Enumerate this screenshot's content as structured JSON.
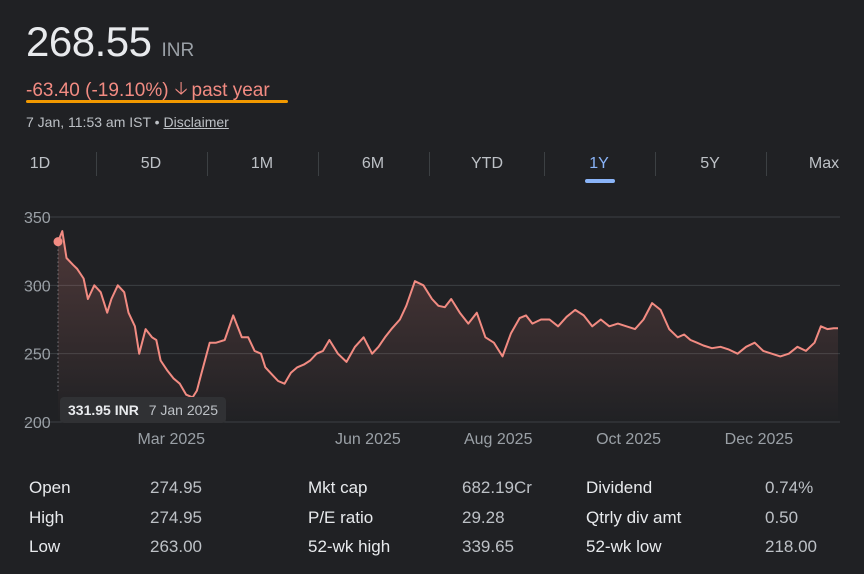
{
  "quote": {
    "price": "268.55",
    "currency": "INR",
    "change": "-63.40 (-19.10%)",
    "period": "past year",
    "timestamp": "7 Jan, 11:53 am IST",
    "disclaimer": "Disclaimer"
  },
  "tabs": [
    {
      "label": "1D"
    },
    {
      "label": "5D"
    },
    {
      "label": "1M"
    },
    {
      "label": "6M"
    },
    {
      "label": "YTD"
    },
    {
      "label": "1Y",
      "active": true
    },
    {
      "label": "5Y"
    },
    {
      "label": "Max"
    }
  ],
  "tooltip": {
    "value": "331.95 INR",
    "date": "7 Jan 2025"
  },
  "colors": {
    "line": "#f28b82",
    "accent": "#8ab4f8",
    "underline": "#f29900"
  },
  "chart_data": {
    "type": "line",
    "title": "",
    "xlabel": "",
    "ylabel": "",
    "ylim": [
      200,
      350
    ],
    "yticks": [
      200,
      250,
      300,
      350
    ],
    "xtick_labels": [
      "Mar 2025",
      "Jun 2025",
      "Aug 2025",
      "Oct 2025",
      "Dec 2025"
    ],
    "grid": true,
    "reference_line": 331.95,
    "series": [
      {
        "x": [
          "2025-01-07",
          "2025-01-09",
          "2025-01-11",
          "2025-01-14",
          "2025-01-16",
          "2025-01-19",
          "2025-01-21",
          "2025-01-24",
          "2025-01-27",
          "2025-01-30",
          "2025-02-01",
          "2025-02-04",
          "2025-02-07",
          "2025-02-09",
          "2025-02-12",
          "2025-02-14",
          "2025-02-17",
          "2025-02-20",
          "2025-02-22",
          "2025-02-24",
          "2025-02-27",
          "2025-03-02",
          "2025-03-05",
          "2025-03-08",
          "2025-03-11",
          "2025-03-13",
          "2025-03-15",
          "2025-03-19",
          "2025-03-22",
          "2025-03-26",
          "2025-03-30",
          "2025-04-03",
          "2025-04-06",
          "2025-04-09",
          "2025-04-12",
          "2025-04-14",
          "2025-04-17",
          "2025-04-20",
          "2025-04-23",
          "2025-04-26",
          "2025-04-29",
          "2025-05-02",
          "2025-05-05",
          "2025-05-08",
          "2025-05-11",
          "2025-05-14",
          "2025-05-18",
          "2025-05-22",
          "2025-05-26",
          "2025-05-30",
          "2025-06-03",
          "2025-06-06",
          "2025-06-09",
          "2025-06-12",
          "2025-06-16",
          "2025-06-19",
          "2025-06-23",
          "2025-06-27",
          "2025-07-01",
          "2025-07-04",
          "2025-07-07",
          "2025-07-10",
          "2025-07-14",
          "2025-07-18",
          "2025-07-22",
          "2025-07-26",
          "2025-07-30",
          "2025-08-03",
          "2025-08-07",
          "2025-08-11",
          "2025-08-14",
          "2025-08-17",
          "2025-08-21",
          "2025-08-25",
          "2025-08-29",
          "2025-09-02",
          "2025-09-06",
          "2025-09-10",
          "2025-09-14",
          "2025-09-18",
          "2025-09-22",
          "2025-09-26",
          "2025-09-30",
          "2025-10-04",
          "2025-10-08",
          "2025-10-12",
          "2025-10-16",
          "2025-10-20",
          "2025-10-24",
          "2025-10-27",
          "2025-10-30",
          "2025-11-02",
          "2025-11-05",
          "2025-11-09",
          "2025-11-13",
          "2025-11-17",
          "2025-11-21",
          "2025-11-25",
          "2025-11-29",
          "2025-12-03",
          "2025-12-07",
          "2025-12-11",
          "2025-12-15",
          "2025-12-19",
          "2025-12-23",
          "2025-12-27",
          "2025-12-30",
          "2026-01-02",
          "2026-01-05",
          "2026-01-07"
        ],
        "values": [
          331.95,
          339.65,
          320,
          315,
          312,
          305,
          290,
          300,
          295,
          280,
          290,
          300,
          295,
          280,
          270,
          250,
          268,
          262,
          260,
          245,
          238,
          232,
          228,
          220,
          218,
          223,
          235,
          258,
          258,
          260,
          278,
          262,
          262,
          252,
          250,
          240,
          235,
          230,
          228,
          236,
          240,
          242,
          245,
          250,
          252,
          260,
          250,
          244,
          255,
          262,
          250,
          255,
          262,
          268,
          275,
          285,
          303,
          300,
          290,
          285,
          284,
          290,
          280,
          272,
          280,
          262,
          258,
          248,
          265,
          276,
          278,
          272,
          275,
          275,
          270,
          277,
          282,
          278,
          270,
          275,
          270,
          272,
          270,
          268,
          275,
          287,
          282,
          268,
          262,
          264,
          260,
          258,
          256,
          254,
          255,
          253,
          250,
          255,
          258,
          252,
          250,
          248,
          250,
          255,
          252,
          258,
          270,
          268,
          268.55,
          268.55
        ]
      }
    ]
  },
  "stats": [
    {
      "label": "Open",
      "value": "274.95"
    },
    {
      "label": "High",
      "value": "274.95"
    },
    {
      "label": "Low",
      "value": "263.00"
    },
    {
      "label": "Mkt cap",
      "value": "682.19Cr"
    },
    {
      "label": "P/E ratio",
      "value": "29.28"
    },
    {
      "label": "52-wk high",
      "value": "339.65"
    },
    {
      "label": "Dividend",
      "value": "0.74%"
    },
    {
      "label": "Qtrly div amt",
      "value": "0.50"
    },
    {
      "label": "52-wk low",
      "value": "218.00"
    }
  ]
}
